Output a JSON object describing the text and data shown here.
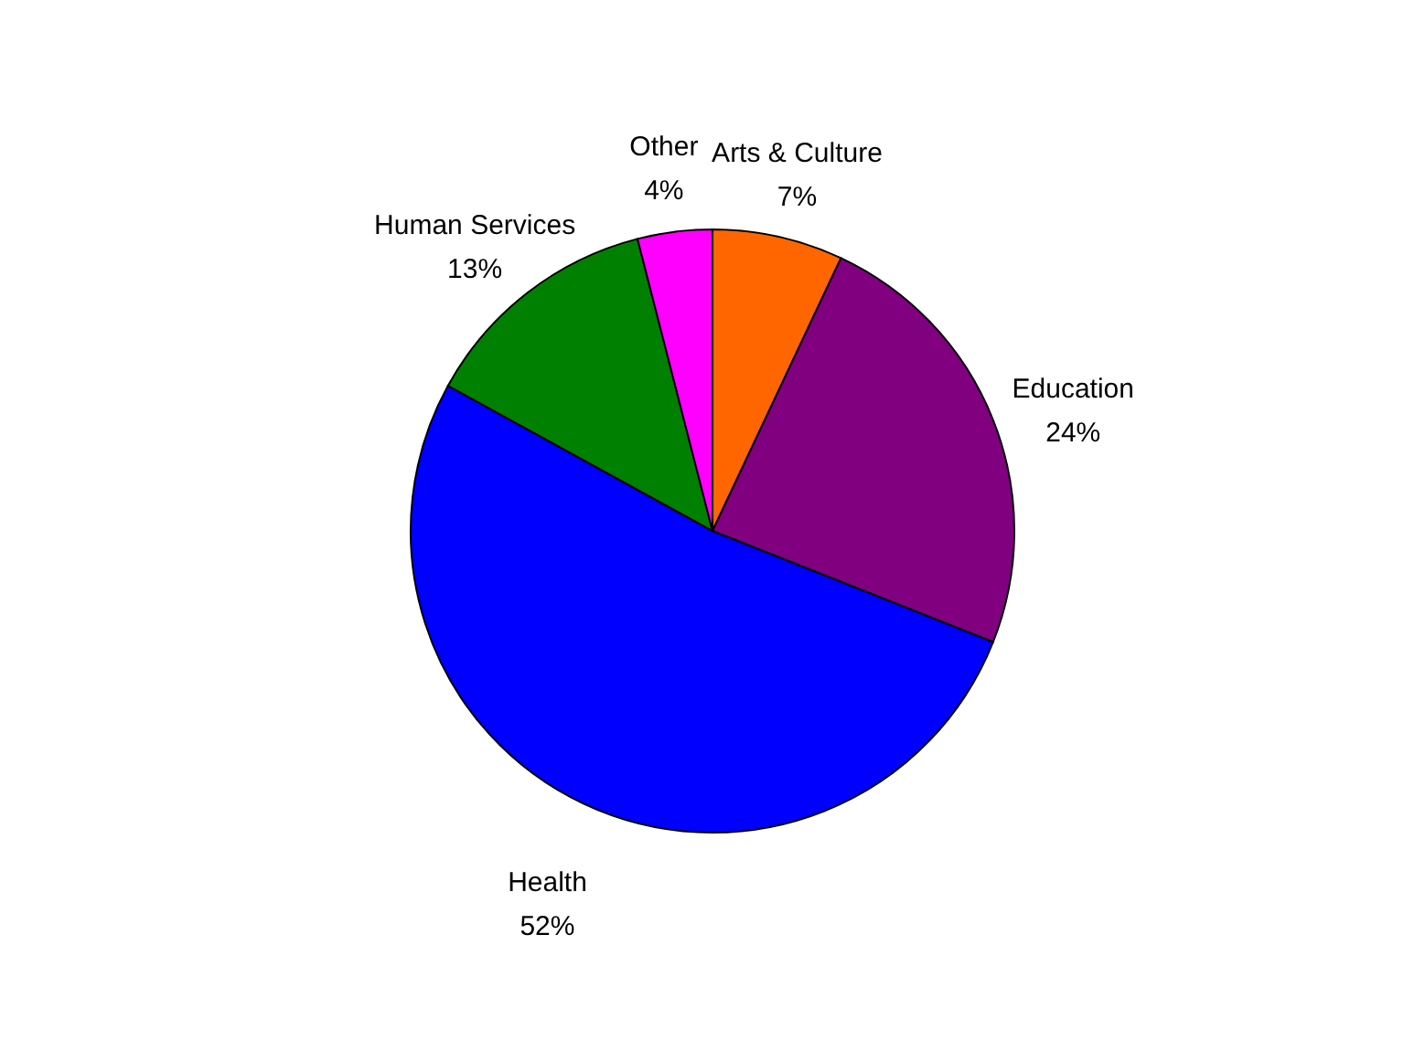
{
  "chart_data": {
    "type": "pie",
    "categories": [
      "Arts & Culture",
      "Education",
      "Health",
      "Human Services",
      "Other"
    ],
    "values": [
      7,
      24,
      52,
      13,
      4
    ],
    "value_labels": [
      "7%",
      "24%",
      "52%",
      "13%",
      "4%"
    ],
    "colors": [
      "#ff6600",
      "#800080",
      "#0000ff",
      "#008000",
      "#ff00ff"
    ],
    "legend": false
  }
}
